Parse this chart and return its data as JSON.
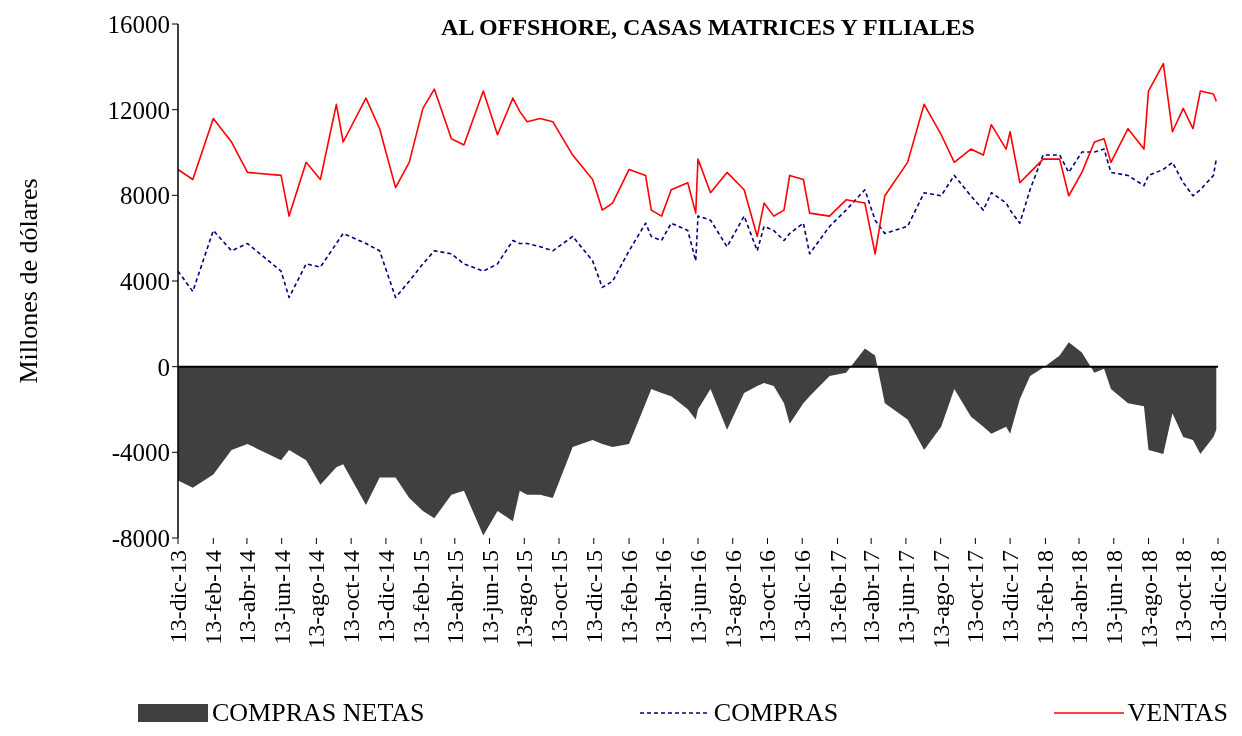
{
  "chart_data": {
    "type": "line",
    "title": "AL OFFSHORE, CASAS MATRICES Y FILIALES",
    "ylabel": "Millones  de dólares",
    "x": [
      "2013-12-13",
      "2014-01-08",
      "2014-02-13",
      "2014-03-17",
      "2014-04-14",
      "2014-06-12",
      "2014-06-26",
      "2014-07-26",
      "2014-08-20",
      "2014-09-17",
      "2014-09-29",
      "2014-11-08",
      "2014-12-02",
      "2014-12-30",
      "2015-01-23",
      "2015-02-16",
      "2015-03-08",
      "2015-04-07",
      "2015-04-29",
      "2015-06-02",
      "2015-06-27",
      "2015-07-24",
      "2015-08-05",
      "2015-08-18",
      "2015-09-10",
      "2015-10-02",
      "2015-11-06",
      "2015-12-11",
      "2015-12-28",
      "2016-01-15",
      "2016-02-13",
      "2016-03-13",
      "2016-03-23",
      "2016-04-10",
      "2016-04-27",
      "2016-05-26",
      "2016-06-09",
      "2016-06-13",
      "2016-07-05",
      "2016-08-03",
      "2016-09-02",
      "2016-09-25",
      "2016-10-07",
      "2016-10-24",
      "2016-11-11",
      "2016-11-21",
      "2016-12-15",
      "2016-12-26",
      "2017-01-30",
      "2017-02-28",
      "2017-04-02",
      "2017-04-20",
      "2017-05-07",
      "2017-06-16",
      "2017-07-15",
      "2017-08-14",
      "2017-09-06",
      "2017-10-05",
      "2017-10-27",
      "2017-11-10",
      "2017-12-06",
      "2017-12-13",
      "2017-12-30",
      "2018-01-17",
      "2018-02-09",
      "2018-03-10",
      "2018-03-26",
      "2018-04-18",
      "2018-05-10",
      "2018-05-27",
      "2018-06-08",
      "2018-07-08",
      "2018-08-05",
      "2018-08-13",
      "2018-09-08",
      "2018-09-24",
      "2018-10-13",
      "2018-10-30",
      "2018-11-12",
      "2018-12-05",
      "2018-12-10"
    ],
    "series": [
      {
        "name": "COMPRAS NETAS",
        "type": "area",
        "color": "#404040",
        "values": [
          -5320,
          -5650,
          -5030,
          -3890,
          -3610,
          -4370,
          -3890,
          -4370,
          -5510,
          -4700,
          -4560,
          -6460,
          -5180,
          -5180,
          -6130,
          -6740,
          -7080,
          -5980,
          -5790,
          -7880,
          -6740,
          -7220,
          -5790,
          -5980,
          -5980,
          -6130,
          -3750,
          -3420,
          -3610,
          -3750,
          -3610,
          -1710,
          -1040,
          -1230,
          -1380,
          -1990,
          -2470,
          -1990,
          -1040,
          -2940,
          -1230,
          -900,
          -760,
          -900,
          -1710,
          -2660,
          -1710,
          -1380,
          -430,
          -280,
          850,
          520,
          -1710,
          -2470,
          -3890,
          -2800,
          -1040,
          -2330,
          -2800,
          -3130,
          -2800,
          -3130,
          -1520,
          -430,
          -50,
          520,
          1140,
          660,
          -280,
          -100,
          -1040,
          -1710,
          -1850,
          -3890,
          -4080,
          -2180,
          -3280,
          -3420,
          -4080,
          -3280,
          -2940
        ]
      },
      {
        "name": "COMPRAS",
        "line_style": "dashed",
        "color": "#000080",
        "values": [
          4460,
          3510,
          6360,
          5410,
          5750,
          4460,
          3230,
          4800,
          4650,
          5750,
          6220,
          5750,
          5410,
          3230,
          3990,
          4800,
          5410,
          5270,
          4800,
          4460,
          4800,
          5890,
          5750,
          5750,
          5600,
          5410,
          6080,
          4940,
          3700,
          3990,
          5410,
          6700,
          6080,
          5890,
          6700,
          6360,
          4940,
          7030,
          6840,
          5600,
          7030,
          5410,
          6550,
          6360,
          5890,
          6220,
          6700,
          5270,
          6550,
          7310,
          8260,
          6840,
          6220,
          6550,
          8120,
          7980,
          8930,
          7980,
          7310,
          8120,
          7640,
          7310,
          6700,
          8260,
          9880,
          9880,
          9070,
          10020,
          10020,
          10160,
          9070,
          8930,
          8450,
          8930,
          9210,
          9540,
          8590,
          7980,
          8260,
          8930,
          9690
        ]
      },
      {
        "name": "VENTAS",
        "line_style": "solid",
        "color": "#ff0000",
        "values": [
          9210,
          8740,
          11590,
          10490,
          9070,
          8930,
          7030,
          9540,
          8740,
          12250,
          10490,
          12540,
          11110,
          8360,
          9540,
          12060,
          12960,
          10640,
          10350,
          12870,
          10830,
          12540,
          11920,
          11440,
          11590,
          11440,
          9880,
          8740,
          7310,
          7640,
          9210,
          8930,
          7310,
          7030,
          8260,
          8590,
          7170,
          9690,
          8120,
          9070,
          8260,
          6080,
          7640,
          7030,
          7310,
          8930,
          8740,
          7170,
          7030,
          7790,
          7640,
          5270,
          7980,
          9540,
          12250,
          10830,
          9540,
          10160,
          9880,
          11300,
          10160,
          10970,
          8590,
          9070,
          9690,
          9690,
          7980,
          9070,
          10490,
          10640,
          9540,
          11110,
          10160,
          12870,
          14150,
          10970,
          12060,
          11110,
          12870,
          12730,
          12390
        ]
      }
    ],
    "xlim": [
      "2013-12-13",
      "2018-12-13"
    ],
    "xticks": [
      {
        "value": "2013-12-13",
        "label": "13-dic-13"
      },
      {
        "value": "2014-02-13",
        "label": "13-feb-14"
      },
      {
        "value": "2014-04-13",
        "label": "13-abr-14"
      },
      {
        "value": "2014-06-13",
        "label": "13-jun-14"
      },
      {
        "value": "2014-08-13",
        "label": "13-ago-14"
      },
      {
        "value": "2014-10-13",
        "label": "13-oct-14"
      },
      {
        "value": "2014-12-13",
        "label": "13-dic-14"
      },
      {
        "value": "2015-02-13",
        "label": "13-feb-15"
      },
      {
        "value": "2015-04-13",
        "label": "13-abr-15"
      },
      {
        "value": "2015-06-13",
        "label": "13-jun-15"
      },
      {
        "value": "2015-08-13",
        "label": "13-ago-15"
      },
      {
        "value": "2015-10-13",
        "label": "13-oct-15"
      },
      {
        "value": "2015-12-13",
        "label": "13-dic-15"
      },
      {
        "value": "2016-02-13",
        "label": "13-feb-16"
      },
      {
        "value": "2016-04-13",
        "label": "13-abr-16"
      },
      {
        "value": "2016-06-13",
        "label": "13-jun-16"
      },
      {
        "value": "2016-08-13",
        "label": "13-ago-16"
      },
      {
        "value": "2016-10-13",
        "label": "13-oct-16"
      },
      {
        "value": "2016-12-13",
        "label": "13-dic-16"
      },
      {
        "value": "2017-02-13",
        "label": "13-feb-17"
      },
      {
        "value": "2017-04-13",
        "label": "13-abr-17"
      },
      {
        "value": "2017-06-13",
        "label": "13-jun-17"
      },
      {
        "value": "2017-08-13",
        "label": "13-ago-17"
      },
      {
        "value": "2017-10-13",
        "label": "13-oct-17"
      },
      {
        "value": "2017-12-13",
        "label": "13-dic-17"
      },
      {
        "value": "2018-02-13",
        "label": "13-feb-18"
      },
      {
        "value": "2018-04-13",
        "label": "13-abr-18"
      },
      {
        "value": "2018-06-13",
        "label": "13-jun-18"
      },
      {
        "value": "2018-08-13",
        "label": "13-ago-18"
      },
      {
        "value": "2018-10-13",
        "label": "13-oct-18"
      },
      {
        "value": "2018-12-13",
        "label": "13-dic-18"
      }
    ],
    "ylim": [
      -8000,
      16000
    ],
    "yticks": [
      -8000,
      -4000,
      0,
      4000,
      8000,
      12000,
      16000
    ],
    "ref_lines": [
      {
        "axis": "y",
        "value": 0,
        "color": "#000000"
      }
    ],
    "grid": false,
    "legend": "bottom",
    "marker": "none"
  }
}
